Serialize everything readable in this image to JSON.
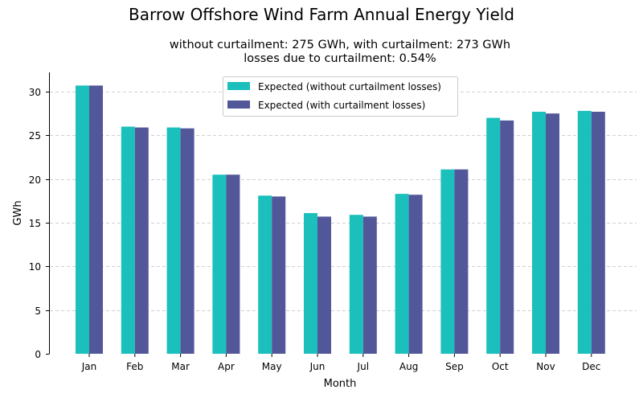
{
  "chart_data": {
    "type": "bar",
    "title": "Barrow Offshore Wind Farm Annual Energy Yield",
    "subtitle_line1": "without curtailment: 275 GWh, with curtailment: 273 GWh",
    "subtitle_line2": "losses due to curtailment: 0.54%",
    "xlabel": "Month",
    "ylabel": "GWh",
    "ylim": [
      0,
      32.2
    ],
    "yticks": [
      0,
      5,
      10,
      15,
      20,
      25,
      30
    ],
    "grid": "y-dashed",
    "legend_position": "top-center",
    "categories": [
      "Jan",
      "Feb",
      "Mar",
      "Apr",
      "May",
      "Jun",
      "Jul",
      "Aug",
      "Sep",
      "Oct",
      "Nov",
      "Dec"
    ],
    "series": [
      {
        "name": "Expected (without curtailment losses)",
        "color": "#1bbfbb",
        "values": [
          30.7,
          26.0,
          25.9,
          20.5,
          18.1,
          16.1,
          15.9,
          18.3,
          21.1,
          27.0,
          27.7,
          27.8
        ]
      },
      {
        "name": "Expected (with curtailment losses)",
        "color": "#52579a",
        "values": [
          30.7,
          25.9,
          25.8,
          20.5,
          18.0,
          15.7,
          15.7,
          18.2,
          21.1,
          26.7,
          27.5,
          27.7
        ]
      }
    ]
  }
}
